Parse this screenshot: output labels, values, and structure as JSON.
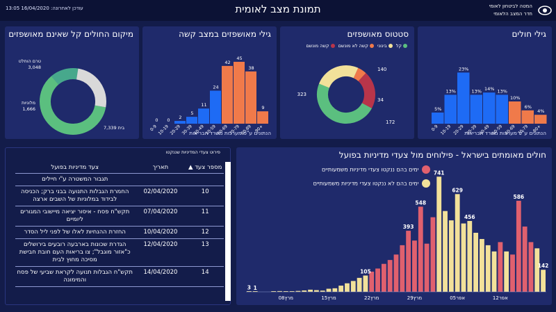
{
  "header": {
    "title": "תמונת מצב לאומית",
    "updated": "עודכן לאחרונה: 16/04/2020 13:05",
    "org_line1": "המטה לביטחון לאומי",
    "org_line2": "חדר המצב הלאומי"
  },
  "colors": {
    "bg": "#131c4a",
    "panel": "#1f2a6b",
    "blue": "#1e6bf5",
    "orange": "#f07a4a",
    "green": "#5bbf7f",
    "yellow": "#f2e19a",
    "red": "#e0606e",
    "gray": "#d9d9d9"
  },
  "ages_panel": {
    "title": "גילי חולים",
    "note": "הנתונים ע\"פ מערכות משרד הבריאות",
    "chart_data": {
      "type": "bar",
      "categories": [
        "0-9",
        "10-19",
        "20-29",
        "30-39",
        "40-49",
        "50-59",
        "60-69",
        "70-79",
        "80+"
      ],
      "values": [
        5,
        13,
        23,
        13,
        14,
        13,
        10,
        6,
        4
      ],
      "value_labels": [
        "5%",
        "13%",
        "23%",
        "13%",
        "14%",
        "13%",
        "10%",
        "6%",
        "4%"
      ]
    }
  },
  "status_panel": {
    "title": "סטטוס מאושפזים",
    "legend": [
      "קל",
      "בינוני",
      "קשה לא מונשם",
      "קשה מונשם"
    ],
    "chart_data": {
      "type": "pie",
      "labels": [
        "קל",
        "בינוני",
        "קשה לא מונשם",
        "קשה מונשם"
      ],
      "values": [
        323,
        172,
        34,
        140
      ],
      "value_labels": [
        "323",
        "172",
        "34",
        "140"
      ]
    }
  },
  "severe_ages_panel": {
    "title": "גילי מאושפזים במצב קשה",
    "note": "הנתונים ע\"פ מערכות משרד הבריאות",
    "chart_data": {
      "type": "bar",
      "categories": [
        "0-9",
        "10-19",
        "20-29",
        "30-39",
        "40-49",
        "50-59",
        "60-69",
        "70-79",
        "80-89",
        "90+"
      ],
      "values": [
        0,
        0,
        2,
        5,
        11,
        24,
        42,
        45,
        38,
        9
      ]
    }
  },
  "location_panel": {
    "title": "מיקום החולים קל שאינם מאושפזים",
    "chart_data": {
      "type": "pie",
      "labels": [
        "בית",
        "מלוניות",
        "טרם הוחלט"
      ],
      "values": [
        7339,
        1666,
        3048
      ],
      "value_labels": [
        "7,339",
        "1,666",
        "3,048"
      ]
    }
  },
  "policy_panel": {
    "caption": "פירוט צעדי המדיניות שננקטו",
    "headers": [
      "מספר צעד",
      "תאריך",
      "צעד מדיניות בפועל"
    ],
    "rows": [
      {
        "num": "",
        "date": "",
        "measure": "תגבור המשטרה ע\"י חיילים"
      },
      {
        "num": "10",
        "date": "02/04/2020",
        "measure": "החמרת הגבלות התנועה בבני ברק; הכניסה לבידוד במלוניות של השבים ארצה"
      },
      {
        "num": "11",
        "date": "07/04/2020",
        "measure": "תקש\"ח פסח - איסור יציאה מיישובי המגורים ליומיים"
      },
      {
        "num": "12",
        "date": "10/04/2020",
        "measure": "החזרת ההנחיות לאלו של לפני ליל הסדר"
      },
      {
        "num": "13",
        "date": "12/04/2020",
        "measure": "הגדרת שכונות בארבעה רובעים בירושלים כ\"אזור מוגבל\"; צו בריאות העם חובת חבישת מסיכה מחוץ לבית"
      },
      {
        "num": "14",
        "date": "14/04/2020",
        "measure": "תקש\"ח הגבלות תנועה לקראת שביעי של פסח והמימונה"
      }
    ]
  },
  "cases_panel": {
    "title": "חולים מאומתים בישראל - פילוחים מול צעדי מדיניות בפועל",
    "legend": [
      "ימים בהם ננקטו צעדי מדיניות משמעותיים",
      "ימים בהם לא ננקטו צעדי מדיניות משמעותיים"
    ],
    "chart_data": {
      "type": "bar",
      "x_tick_labels": [
        "מרץ08",
        "מרץ15",
        "מרץ22",
        "מרץ29",
        "אפר05",
        "אפר12"
      ],
      "values": [
        3,
        1,
        0,
        0,
        2,
        5,
        4,
        3,
        6,
        9,
        14,
        11,
        8,
        20,
        23,
        40,
        55,
        70,
        90,
        105,
        130,
        150,
        180,
        205,
        240,
        300,
        393,
        330,
        548,
        310,
        480,
        741,
        520,
        460,
        629,
        440,
        456,
        380,
        340,
        300,
        260,
        320,
        260,
        240,
        586,
        420,
        320,
        280,
        142
      ],
      "policy_days": [
        20,
        21,
        22,
        23,
        24,
        25,
        26,
        27,
        28,
        29,
        30,
        41,
        43,
        44,
        45,
        46
      ],
      "labeled_points": [
        {
          "index": 0,
          "label": "3"
        },
        {
          "index": 1,
          "label": "1"
        },
        {
          "index": 19,
          "label": "105"
        },
        {
          "index": 26,
          "label": "393"
        },
        {
          "index": 28,
          "label": "548"
        },
        {
          "index": 31,
          "label": "741"
        },
        {
          "index": 34,
          "label": "629"
        },
        {
          "index": 36,
          "label": "456"
        },
        {
          "index": 44,
          "label": "586"
        },
        {
          "index": 48,
          "label": "142"
        }
      ]
    }
  }
}
